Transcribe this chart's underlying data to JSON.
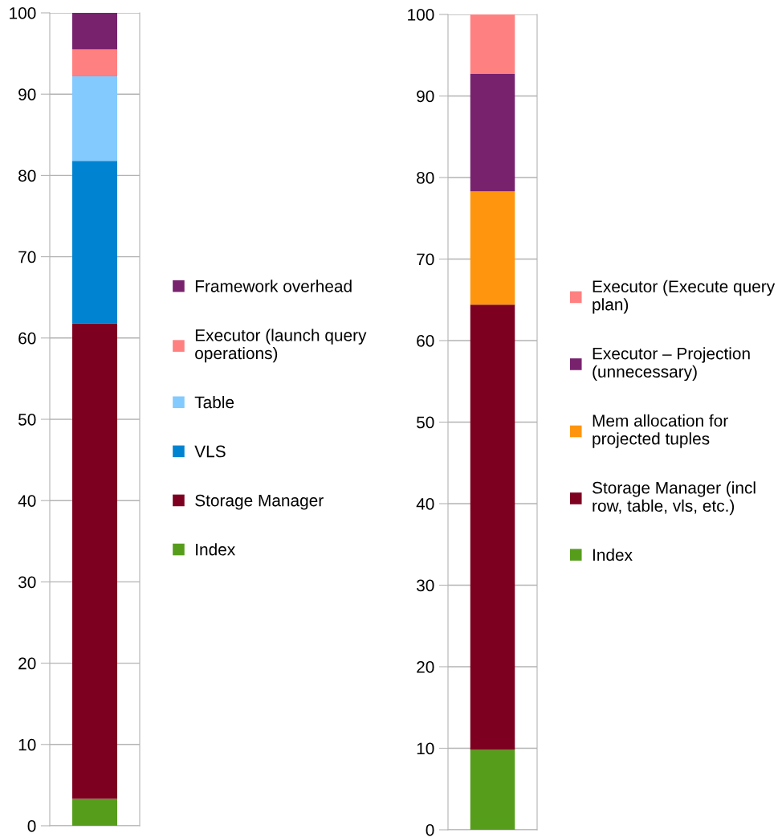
{
  "chart_data": [
    {
      "type": "bar",
      "stacked": true,
      "categories": [
        null
      ],
      "ylim": [
        0,
        100
      ],
      "yticks": [
        0,
        10,
        20,
        30,
        40,
        50,
        60,
        70,
        80,
        90,
        100
      ],
      "grid": "y",
      "legend": "right",
      "series": [
        {
          "name": "Index",
          "color": "#579d1c",
          "values": [
            3.3
          ]
        },
        {
          "name": "Storage Manager",
          "color": "#7e0021",
          "values": [
            58.5
          ]
        },
        {
          "name": "VLS",
          "color": "#0084d1",
          "values": [
            20.0
          ]
        },
        {
          "name": "Table",
          "color": "#83caff",
          "values": [
            10.4
          ]
        },
        {
          "name": "Executor (launch query\noperations)",
          "color": "#ff8080",
          "values": [
            3.3
          ]
        },
        {
          "name": "Framework overhead",
          "color": "#78226e",
          "values": [
            4.5
          ]
        }
      ]
    },
    {
      "type": "bar",
      "stacked": true,
      "categories": [
        null
      ],
      "ylim": [
        0,
        100
      ],
      "yticks": [
        0,
        10,
        20,
        30,
        40,
        50,
        60,
        70,
        80,
        90,
        100
      ],
      "grid": "y",
      "legend": "right",
      "series": [
        {
          "name": "Index",
          "color": "#579d1c",
          "values": [
            9.8
          ]
        },
        {
          "name": "Storage Manager (incl\nrow, table, vls, etc.)",
          "color": "#7e0021",
          "values": [
            54.6
          ]
        },
        {
          "name": "Mem allocation for\nprojected tuples",
          "color": "#ff950e",
          "values": [
            13.9
          ]
        },
        {
          "name": "Executor – Projection\n(unnecessary)",
          "color": "#78226e",
          "values": [
            14.4
          ]
        },
        {
          "name": "Executor (Execute query\nplan)",
          "color": "#ff8080",
          "values": [
            7.3
          ]
        }
      ]
    }
  ]
}
